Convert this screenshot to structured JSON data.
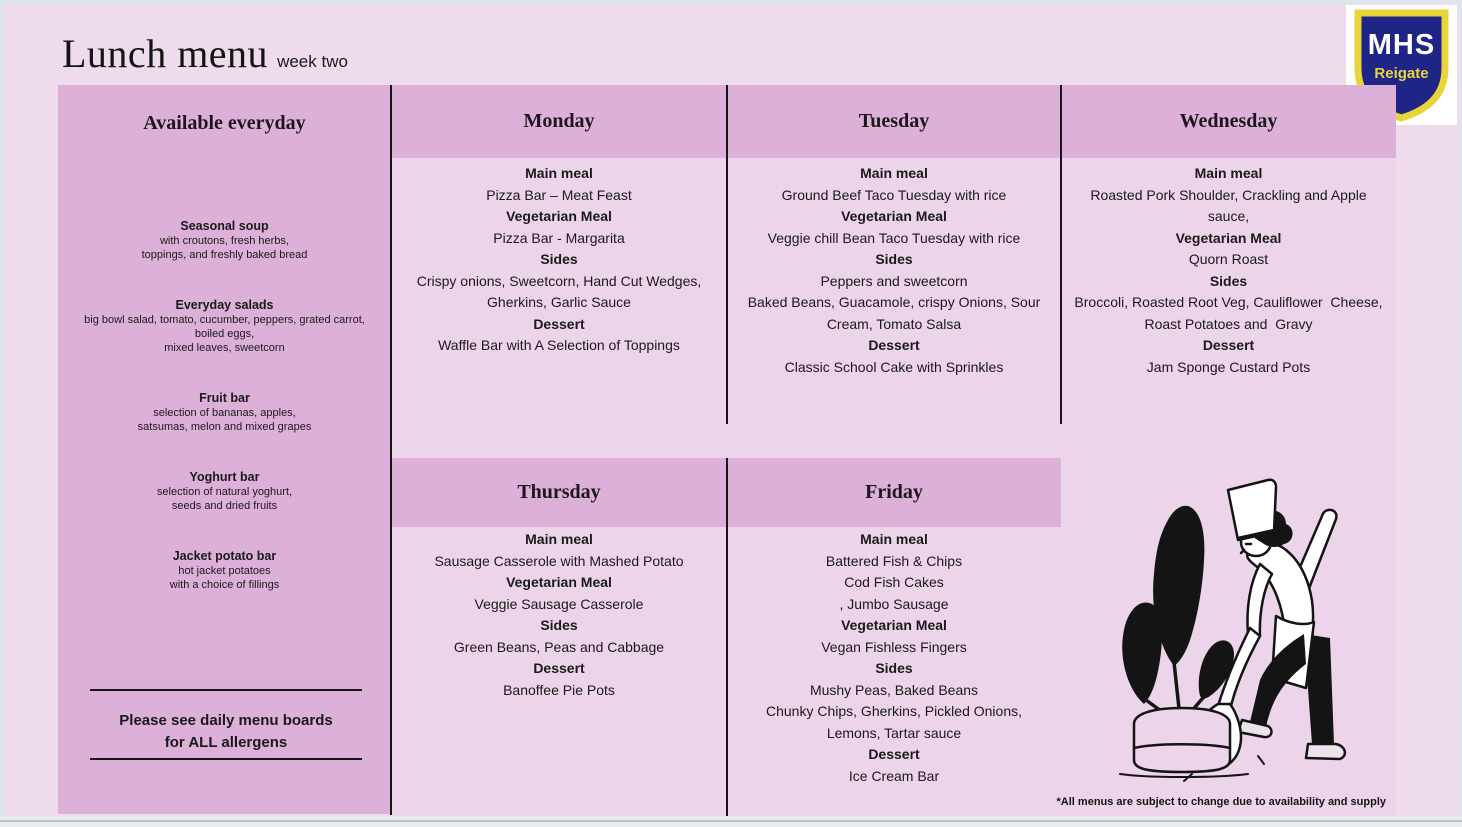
{
  "page": {
    "title": "Lunch menu",
    "subtitle": "week two",
    "footnote": "*All menus are subject to change due to availability and supply"
  },
  "logo": {
    "line1": "MHS",
    "line2": "Reigate"
  },
  "icons": {
    "logo": "shield-icon",
    "illustration": "chef-digging-plant"
  },
  "colors": {
    "page_bg": "#eedbec",
    "panel_pink": "#dcb0d8",
    "content_pink": "#ecd4ea",
    "divider": "#161616",
    "shield_navy": "#1f2487",
    "shield_yellow": "#e8d53c"
  },
  "everyday": {
    "heading": "Available everyday",
    "items": [
      {
        "name": "Seasonal soup",
        "desc": [
          "with croutons, fresh herbs,",
          "toppings, and freshly baked bread"
        ]
      },
      {
        "name": "Everyday salads",
        "desc": [
          "big bowl salad, tomato, cucumber, peppers, grated carrot,",
          "boiled eggs,",
          "mixed leaves, sweetcorn"
        ]
      },
      {
        "name": "Fruit bar",
        "desc": [
          "selection of bananas, apples,",
          "satsumas, melon and mixed grapes"
        ]
      },
      {
        "name": "Yoghurt bar",
        "desc": [
          "selection of natural yoghurt,",
          "seeds and dried fruits"
        ]
      },
      {
        "name": "Jacket potato bar",
        "desc": [
          "hot jacket potatoes",
          "with a choice of fillings"
        ]
      }
    ],
    "allergen_note": [
      "Please see daily menu boards",
      "for ALL allergens"
    ]
  },
  "days": [
    {
      "name": "Monday",
      "sections": [
        {
          "label": "Main meal",
          "lines": [
            "Pizza Bar – Meat Feast"
          ]
        },
        {
          "label": "Vegetarian Meal",
          "lines": [
            "Pizza Bar - Margarita"
          ]
        },
        {
          "label": "Sides",
          "lines": [
            "Crispy onions, Sweetcorn, Hand Cut Wedges,",
            "Gherkins, Garlic Sauce"
          ]
        },
        {
          "label": "Dessert",
          "lines": [
            "Waffle Bar with A Selection of Toppings"
          ]
        }
      ]
    },
    {
      "name": "Tuesday",
      "sections": [
        {
          "label": "Main meal",
          "lines": [
            "Ground Beef Taco Tuesday with rice"
          ]
        },
        {
          "label": "Vegetarian Meal",
          "lines": [
            "Veggie chill Bean Taco Tuesday with rice"
          ]
        },
        {
          "label": "Sides",
          "lines": [
            "Peppers and sweetcorn",
            "Baked Beans, Guacamole, crispy Onions, Sour",
            "Cream, Tomato Salsa"
          ]
        },
        {
          "label": "Dessert",
          "lines": [
            "Classic School Cake with Sprinkles"
          ]
        }
      ]
    },
    {
      "name": "Wednesday",
      "sections": [
        {
          "label": "Main meal",
          "lines": [
            "Roasted Pork Shoulder, Crackling and Apple",
            "sauce,"
          ]
        },
        {
          "label": "Vegetarian Meal",
          "lines": [
            "Quorn Roast"
          ]
        },
        {
          "label": "Sides",
          "lines": [
            "Broccoli, Roasted Root Veg, Cauliflower  Cheese,",
            "Roast Potatoes and  Gravy"
          ]
        },
        {
          "label": "Dessert",
          "lines": [
            "Jam Sponge Custard Pots"
          ]
        }
      ]
    },
    {
      "name": "Thursday",
      "sections": [
        {
          "label": "Main meal",
          "lines": [
            "Sausage Casserole with Mashed Potato"
          ]
        },
        {
          "label": "Vegetarian Meal",
          "lines": [
            "Veggie Sausage Casserole"
          ]
        },
        {
          "label": "Sides",
          "lines": [
            "Green Beans, Peas and Cabbage"
          ]
        },
        {
          "label": "Dessert",
          "lines": [
            "Banoffee Pie Pots"
          ]
        }
      ]
    },
    {
      "name": "Friday",
      "sections": [
        {
          "label": "Main meal",
          "lines": [
            "Battered Fish & Chips",
            "Cod Fish Cakes",
            ", Jumbo Sausage"
          ]
        },
        {
          "label": "Vegetarian Meal",
          "lines": [
            "Vegan Fishless Fingers"
          ]
        },
        {
          "label": "Sides",
          "lines": [
            "Mushy Peas, Baked Beans",
            "Chunky Chips, Gherkins, Pickled Onions,",
            "Lemons, Tartar sauce"
          ]
        },
        {
          "label": "Dessert",
          "lines": [
            "Ice Cream Bar"
          ]
        }
      ]
    }
  ]
}
